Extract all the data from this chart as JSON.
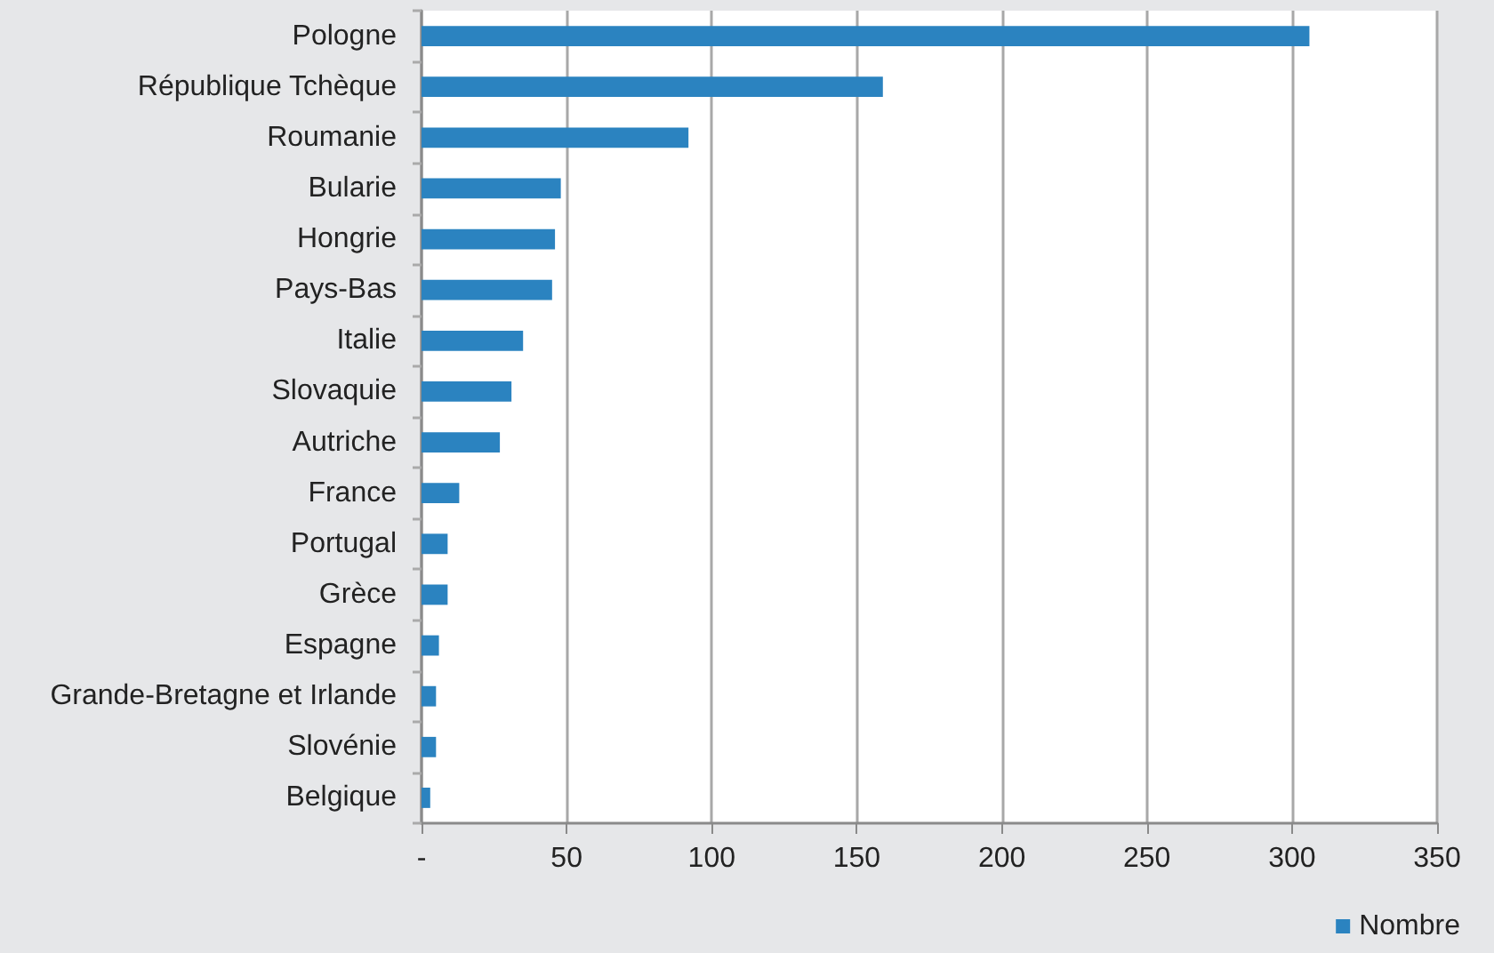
{
  "chart_data": {
    "type": "bar",
    "orientation": "horizontal",
    "categories": [
      "Pologne",
      "République Tchèque",
      "Roumanie",
      "Bularie",
      "Hongrie",
      "Pays-Bas",
      "Italie",
      "Slovaquie",
      "Autriche",
      "France",
      "Portugal",
      "Grèce",
      "Espagne",
      "Grande-Bretagne et Irlande",
      "Slovénie",
      "Belgique"
    ],
    "series": [
      {
        "name": "Nombre",
        "color": "#2b83c0",
        "values": [
          306,
          159,
          92,
          48,
          46,
          45,
          35,
          31,
          27,
          13,
          9,
          9,
          6,
          5,
          5,
          3
        ]
      }
    ],
    "xlim": [
      0,
      350
    ],
    "xticks": [
      {
        "value": 0,
        "label": "-"
      },
      50,
      100,
      150,
      200,
      250,
      300,
      350
    ],
    "grid": "x",
    "legend": "bottom right"
  }
}
